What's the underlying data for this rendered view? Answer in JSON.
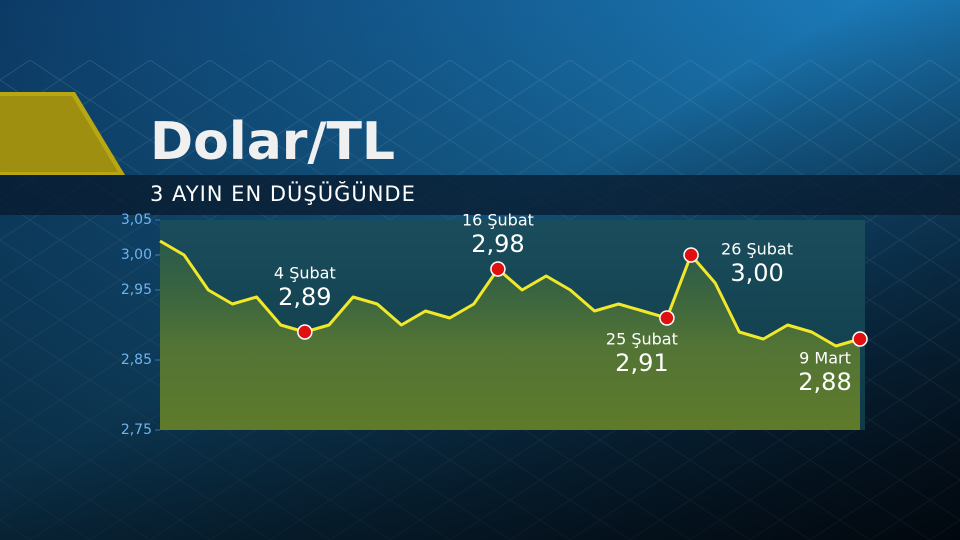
{
  "chart_data": {
    "type": "line",
    "title": "Dolar/TL",
    "subtitle": "3 AYIN EN DÜŞÜĞÜNDE",
    "categories": [
      null,
      null,
      null,
      null,
      null,
      null,
      "4 Şubat",
      null,
      null,
      null,
      null,
      null,
      null,
      null,
      "16 Şubat",
      null,
      null,
      null,
      null,
      null,
      null,
      "25 Şubat",
      "26 Şubat",
      null,
      null,
      null,
      null,
      null,
      null,
      "9 Mart"
    ],
    "values": [
      3.02,
      3.0,
      2.95,
      2.93,
      2.94,
      2.9,
      2.89,
      2.9,
      2.94,
      2.93,
      2.9,
      2.92,
      2.91,
      2.93,
      2.98,
      2.95,
      2.97,
      2.95,
      2.92,
      2.93,
      2.92,
      2.91,
      3.0,
      2.96,
      2.89,
      2.88,
      2.9,
      2.89,
      2.87,
      2.88
    ],
    "value_labels": [
      null,
      null,
      null,
      null,
      null,
      null,
      "2,89",
      null,
      null,
      null,
      null,
      null,
      null,
      null,
      "2,98",
      null,
      null,
      null,
      null,
      null,
      null,
      "2,91",
      "3,00",
      null,
      null,
      null,
      null,
      null,
      null,
      "2,88"
    ],
    "color": "#f2e82a",
    "marker_color": "#e01010",
    "ylim": [
      2.75,
      3.05
    ],
    "yticks": [
      {
        "value": 2.75,
        "label": "2,75"
      },
      {
        "value": 2.85,
        "label": "2,85"
      },
      {
        "value": 2.95,
        "label": "2,95"
      },
      {
        "value": 3.0,
        "label": "3,00"
      },
      {
        "value": 3.05,
        "label": "3,05"
      }
    ]
  }
}
